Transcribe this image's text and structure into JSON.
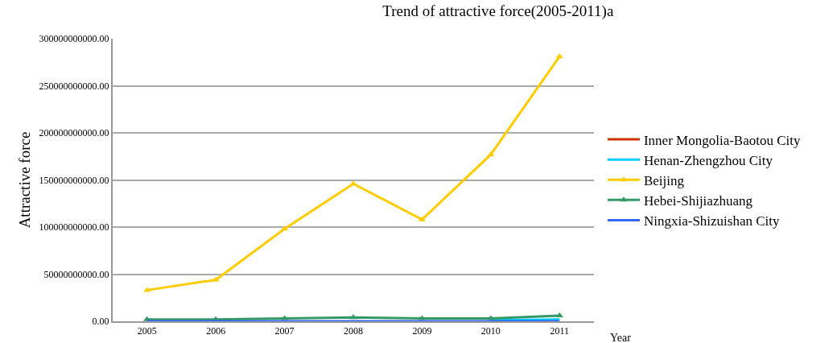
{
  "chart_data": {
    "type": "line",
    "title": "Trend of attractive force(2005-2011)a",
    "xlabel": "Year",
    "ylabel": "Attractive force",
    "categories": [
      "2005",
      "2006",
      "2007",
      "2008",
      "2009",
      "2010",
      "2011"
    ],
    "series": [
      {
        "name": "Inner Mongolia-Baotou City",
        "color": "#cc3300",
        "marker": "none",
        "values": [
          null,
          null,
          null,
          null,
          null,
          null,
          null
        ]
      },
      {
        "name": "Henan-Zhengzhou City",
        "color": "#00ccff",
        "marker": "none",
        "values": [
          null,
          null,
          null,
          null,
          null,
          1000000000,
          2000000000
        ]
      },
      {
        "name": "Beijing",
        "color": "#ffcc00",
        "marker": "triangle",
        "values": [
          33000000000,
          44000000000,
          98000000000,
          146000000000,
          108000000000,
          177000000000,
          281000000000
        ]
      },
      {
        "name": "Hebei-Shijiazhuang",
        "color": "#339966",
        "marker": "triangle",
        "values": [
          2000000000,
          2000000000,
          3000000000,
          4000000000,
          3000000000,
          3000000000,
          6000000000
        ]
      },
      {
        "name": "Ningxia-Shizuishan City",
        "color": "#3366ff",
        "marker": "none",
        "values": [
          0,
          0,
          0,
          0,
          0,
          0,
          0
        ]
      }
    ],
    "ylim": [
      0,
      300000000000
    ],
    "yticks": [
      {
        "value": 0,
        "label": "0.00"
      },
      {
        "value": 50000000000,
        "label": "50000000000.00"
      },
      {
        "value": 100000000000,
        "label": "100000000000.00"
      },
      {
        "value": 150000000000,
        "label": "150000000000.00"
      },
      {
        "value": 200000000000,
        "label": "200000000000.00"
      },
      {
        "value": 250000000000,
        "label": "250000000000.00"
      },
      {
        "value": 300000000000,
        "label": "300000000000.00"
      }
    ],
    "grid": "y",
    "legend": "right",
    "line_style": "solid"
  }
}
